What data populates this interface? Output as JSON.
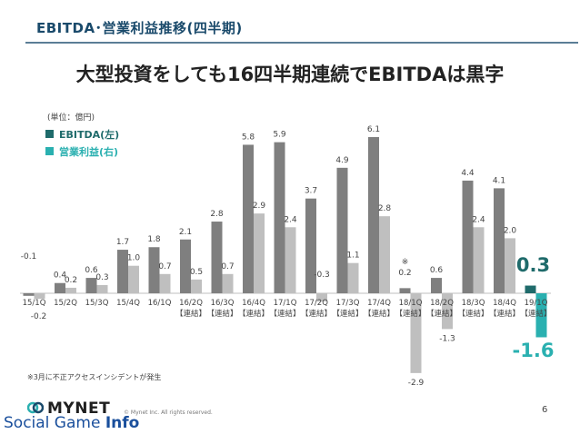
{
  "header": {
    "section_title": "EBITDA･営業利益推移(四半期)",
    "headline": "大型投資をしても16四半期連続でEBITDAは黒字"
  },
  "colors": {
    "ebitda": "#7f7f7f",
    "operating_income": "#bfbfbf",
    "highlight_ebitda": "#1f6b6b",
    "highlight_operating_income": "#2ab0b0",
    "title": "#1a4a6b"
  },
  "chart_data": {
    "type": "bar",
    "unit_note": "(単位：億円)",
    "categories": [
      {
        "line1": "15/1Q",
        "line2": ""
      },
      {
        "line1": "15/2Q",
        "line2": ""
      },
      {
        "line1": "15/3Q",
        "line2": ""
      },
      {
        "line1": "15/4Q",
        "line2": ""
      },
      {
        "line1": "16/1Q",
        "line2": ""
      },
      {
        "line1": "16/2Q",
        "line2": "【連結】"
      },
      {
        "line1": "16/3Q",
        "line2": "【連結】"
      },
      {
        "line1": "16/4Q",
        "line2": "【連結】"
      },
      {
        "line1": "17/1Q",
        "line2": "【連結】"
      },
      {
        "line1": "17/2Q",
        "line2": "【連結】"
      },
      {
        "line1": "17/3Q",
        "line2": "【連結】"
      },
      {
        "line1": "17/4Q",
        "line2": "【連結】"
      },
      {
        "line1": "18/1Q",
        "line2": "【連結】"
      },
      {
        "line1": "18/2Q",
        "line2": "【連結】"
      },
      {
        "line1": "18/3Q",
        "line2": "【連結】"
      },
      {
        "line1": "18/4Q",
        "line2": "【連結】"
      },
      {
        "line1": "19/1Q",
        "line2": "【連結】"
      }
    ],
    "series": [
      {
        "name": "EBITDA(左)",
        "values": [
          -0.1,
          0.4,
          0.6,
          1.7,
          1.8,
          2.1,
          2.8,
          5.8,
          5.9,
          3.7,
          4.9,
          6.1,
          0.2,
          0.6,
          4.4,
          4.1,
          0.3
        ],
        "labels": [
          "-0.1",
          "0.4",
          "0.6",
          "1.7",
          "1.8",
          "2.1",
          "2.8",
          "5.8",
          "5.9",
          "3.7",
          "4.9",
          "6.1",
          "0.2",
          "0.6",
          "4.4",
          "4.1",
          "0.3"
        ]
      },
      {
        "name": "営業利益(右)",
        "values": [
          -0.2,
          0.2,
          0.3,
          1.0,
          0.7,
          0.5,
          0.7,
          2.9,
          2.4,
          -0.3,
          1.1,
          2.8,
          -2.9,
          -1.3,
          2.4,
          2.0,
          -1.6
        ],
        "labels": [
          "-0.2",
          "0.2",
          "0.3",
          "1.0",
          "0.7",
          "0.5",
          "0.7",
          "2.9",
          "2.4",
          "-0.3",
          "1.1",
          "2.8",
          "-2.9",
          "-1.3",
          "2.4",
          "2.0",
          "-1.6"
        ]
      }
    ],
    "annotations": [
      {
        "category_index": 12,
        "text": "※"
      }
    ]
  },
  "footer": {
    "footnote": "※3月に不正アクセスインシデントが発生",
    "logo_text": "MYNET",
    "copyright": "© Mynet Inc. All rights reserved.",
    "page_number": "6",
    "watermark_part1": "Social Game ",
    "watermark_part2": "Info"
  }
}
